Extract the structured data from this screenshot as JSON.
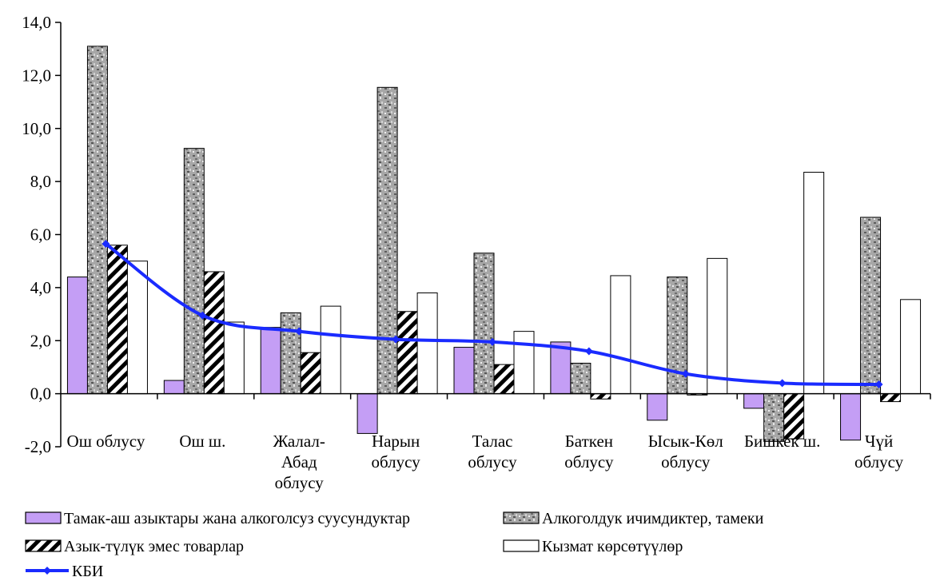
{
  "chart_data": {
    "type": "bar",
    "title": "",
    "xlabel": "",
    "ylabel": "",
    "ylim": [
      -2.0,
      14.0
    ],
    "yticks": [
      "-2,0",
      "0,0",
      "2,0",
      "4,0",
      "6,0",
      "8,0",
      "10,0",
      "12,0",
      "14,0"
    ],
    "grid": false,
    "legend_position": "bottom",
    "categories": [
      [
        "Ош облусу"
      ],
      [
        "Ош ш."
      ],
      [
        "Жалал-",
        "Абад",
        "облусу"
      ],
      [
        "Нарын",
        "облусу"
      ],
      [
        "Талас",
        "облусу"
      ],
      [
        "Баткен",
        "облусу"
      ],
      [
        "Ысык-Көл",
        "облусу"
      ],
      [
        "Бишкек ш."
      ],
      [
        "Чүй",
        "облусу"
      ]
    ],
    "series": [
      {
        "name": "Тамак-аш азыктары жана алкоголсуз суусундуктар",
        "kind": "bar",
        "pattern": "solid-lilac",
        "color": "#c49ef5",
        "values": [
          4.4,
          0.5,
          2.5,
          -1.5,
          1.75,
          1.95,
          -1.0,
          -0.55,
          -1.75
        ]
      },
      {
        "name": "Алкоголдук ичимдиктер, тамеки",
        "kind": "bar",
        "pattern": "granite",
        "color": "#9a9a9a",
        "values": [
          13.1,
          9.25,
          3.05,
          11.55,
          5.3,
          1.15,
          4.4,
          -1.8,
          6.65
        ]
      },
      {
        "name": "Азык-түлүк эмес товарлар",
        "kind": "bar",
        "pattern": "diagonal-stripes",
        "color": "#000000",
        "values": [
          5.6,
          4.6,
          1.55,
          3.1,
          1.1,
          -0.2,
          -0.05,
          -1.7,
          -0.3
        ]
      },
      {
        "name": "Кызмат көрсөтүүлөр",
        "kind": "bar",
        "pattern": "white",
        "color": "#ffffff",
        "values": [
          5.0,
          2.7,
          3.3,
          3.8,
          2.35,
          4.45,
          5.1,
          8.35,
          3.55
        ]
      },
      {
        "name": "КБИ",
        "kind": "line",
        "color": "#1a2bff",
        "values": [
          5.65,
          2.95,
          2.35,
          2.05,
          1.95,
          1.6,
          0.75,
          0.4,
          0.35
        ]
      }
    ]
  }
}
